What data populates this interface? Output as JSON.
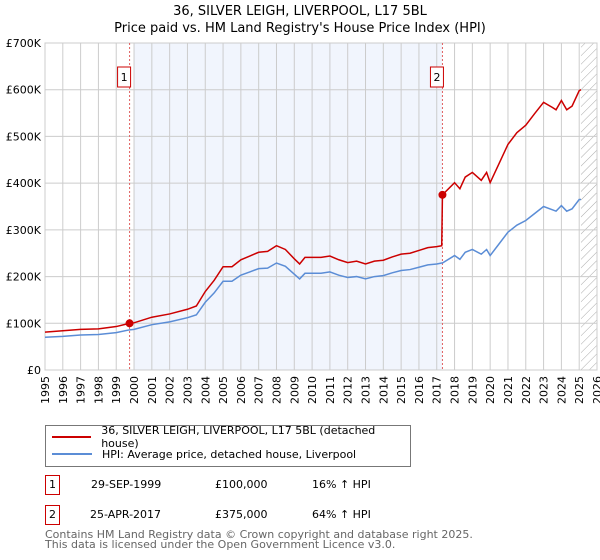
{
  "chart_data": {
    "type": "line",
    "title": "36, SILVER LEIGH, LIVERPOOL, L17 5BL",
    "subtitle": "Price paid vs. HM Land Registry's House Price Index (HPI)",
    "xlim": [
      1995,
      2026
    ],
    "ylim": [
      0,
      700000
    ],
    "x_ticks": [
      "1995",
      "1996",
      "1997",
      "1998",
      "1999",
      "2000",
      "2001",
      "2002",
      "2003",
      "2004",
      "2005",
      "2006",
      "2007",
      "2008",
      "2009",
      "2010",
      "2011",
      "2012",
      "2013",
      "2014",
      "2015",
      "2016",
      "2017",
      "2018",
      "2019",
      "2020",
      "2021",
      "2022",
      "2023",
      "2024",
      "2025",
      "2026"
    ],
    "y_ticks": [
      {
        "v": 0,
        "label": "£0"
      },
      {
        "v": 100000,
        "label": "£100K"
      },
      {
        "v": 200000,
        "label": "£200K"
      },
      {
        "v": 300000,
        "label": "£300K"
      },
      {
        "v": 400000,
        "label": "£400K"
      },
      {
        "v": 500000,
        "label": "£500K"
      },
      {
        "v": 600000,
        "label": "£600K"
      },
      {
        "v": 700000,
        "label": "£700K"
      }
    ],
    "grid": true,
    "shaded_range": [
      2000,
      2017.3
    ],
    "forecast_hatch_from": 2025.1,
    "series": [
      {
        "name": "36, SILVER LEIGH, LIVERPOOL, L17 5BL (detached house)",
        "color": "#cc0000",
        "x": [
          1995,
          1996,
          1997,
          1998,
          1999,
          1999.75,
          2000,
          2001,
          2002,
          2003,
          2003.5,
          2004,
          2004.5,
          2005,
          2005.5,
          2006,
          2006.5,
          2007,
          2007.5,
          2008,
          2008.5,
          2009,
          2009.3,
          2009.6,
          2010,
          2010.5,
          2011,
          2011.5,
          2012,
          2012.5,
          2013,
          2013.5,
          2014,
          2014.5,
          2015,
          2015.5,
          2016,
          2016.5,
          2017,
          2017.28,
          2017.32,
          2018,
          2018.3,
          2018.6,
          2019,
          2019.5,
          2019.8,
          2020,
          2020.5,
          2021,
          2021.5,
          2022,
          2022.5,
          2023,
          2023.5,
          2023.7,
          2024,
          2024.3,
          2024.6,
          2025,
          2025.1
        ],
        "y": [
          81,
          84,
          87,
          88,
          93,
          100,
          101,
          113,
          120,
          130,
          137,
          168,
          192,
          221,
          221,
          236,
          244,
          252,
          254,
          266,
          258,
          238,
          227,
          241,
          241,
          241,
          244,
          236,
          230,
          233,
          227,
          233,
          235,
          242,
          248,
          250,
          256,
          262,
          264,
          266,
          375,
          401,
          388,
          413,
          423,
          406,
          423,
          401,
          442,
          483,
          508,
          524,
          549,
          573,
          562,
          557,
          577,
          557,
          565,
          598,
          600
        ]
      },
      {
        "name": "HPI: Average price, detached house, Liverpool",
        "color": "#5b8dd6",
        "x": [
          1995,
          1996,
          1997,
          1998,
          1999,
          1999.75,
          2000,
          2001,
          2002,
          2003,
          2003.5,
          2004,
          2004.5,
          2005,
          2005.5,
          2006,
          2006.5,
          2007,
          2007.5,
          2008,
          2008.5,
          2009,
          2009.3,
          2009.6,
          2010,
          2010.5,
          2011,
          2011.5,
          2012,
          2012.5,
          2013,
          2013.5,
          2014,
          2014.5,
          2015,
          2015.5,
          2016,
          2016.5,
          2017,
          2017.28,
          2017.32,
          2018,
          2018.3,
          2018.6,
          2019,
          2019.5,
          2019.8,
          2020,
          2020.5,
          2021,
          2021.5,
          2022,
          2022.5,
          2023,
          2023.5,
          2023.7,
          2024,
          2024.3,
          2024.6,
          2025,
          2025.1
        ],
        "y": [
          70,
          72,
          75,
          76,
          80,
          86,
          87,
          97,
          103,
          112,
          118,
          145,
          165,
          190,
          190,
          203,
          210,
          217,
          218,
          229,
          222,
          205,
          195,
          207,
          207,
          207,
          210,
          203,
          198,
          200,
          195,
          200,
          202,
          208,
          213,
          215,
          220,
          225,
          227,
          229,
          229,
          245,
          237,
          252,
          258,
          248,
          258,
          245,
          270,
          295,
          310,
          320,
          335,
          350,
          343,
          340,
          352,
          340,
          345,
          365,
          365
        ]
      }
    ],
    "y_unit_multiplier": 1000,
    "annotations": [
      {
        "label": "1",
        "x": 1999.75,
        "y": 100000
      },
      {
        "label": "2",
        "x": 2017.32,
        "y": 375000
      }
    ]
  },
  "legend": {
    "red": "36, SILVER LEIGH, LIVERPOOL, L17 5BL (detached house)",
    "blue": "HPI: Average price, detached house, Liverpool"
  },
  "sales": [
    {
      "num": "1",
      "date": "29-SEP-1999",
      "price": "£100,000",
      "hpi": "16% ↑ HPI"
    },
    {
      "num": "2",
      "date": "25-APR-2017",
      "price": "£375,000",
      "hpi": "64% ↑ HPI"
    }
  ],
  "footer": {
    "line1": "Contains HM Land Registry data © Crown copyright and database right 2025.",
    "line2": "This data is licensed under the Open Government Licence v3.0."
  }
}
